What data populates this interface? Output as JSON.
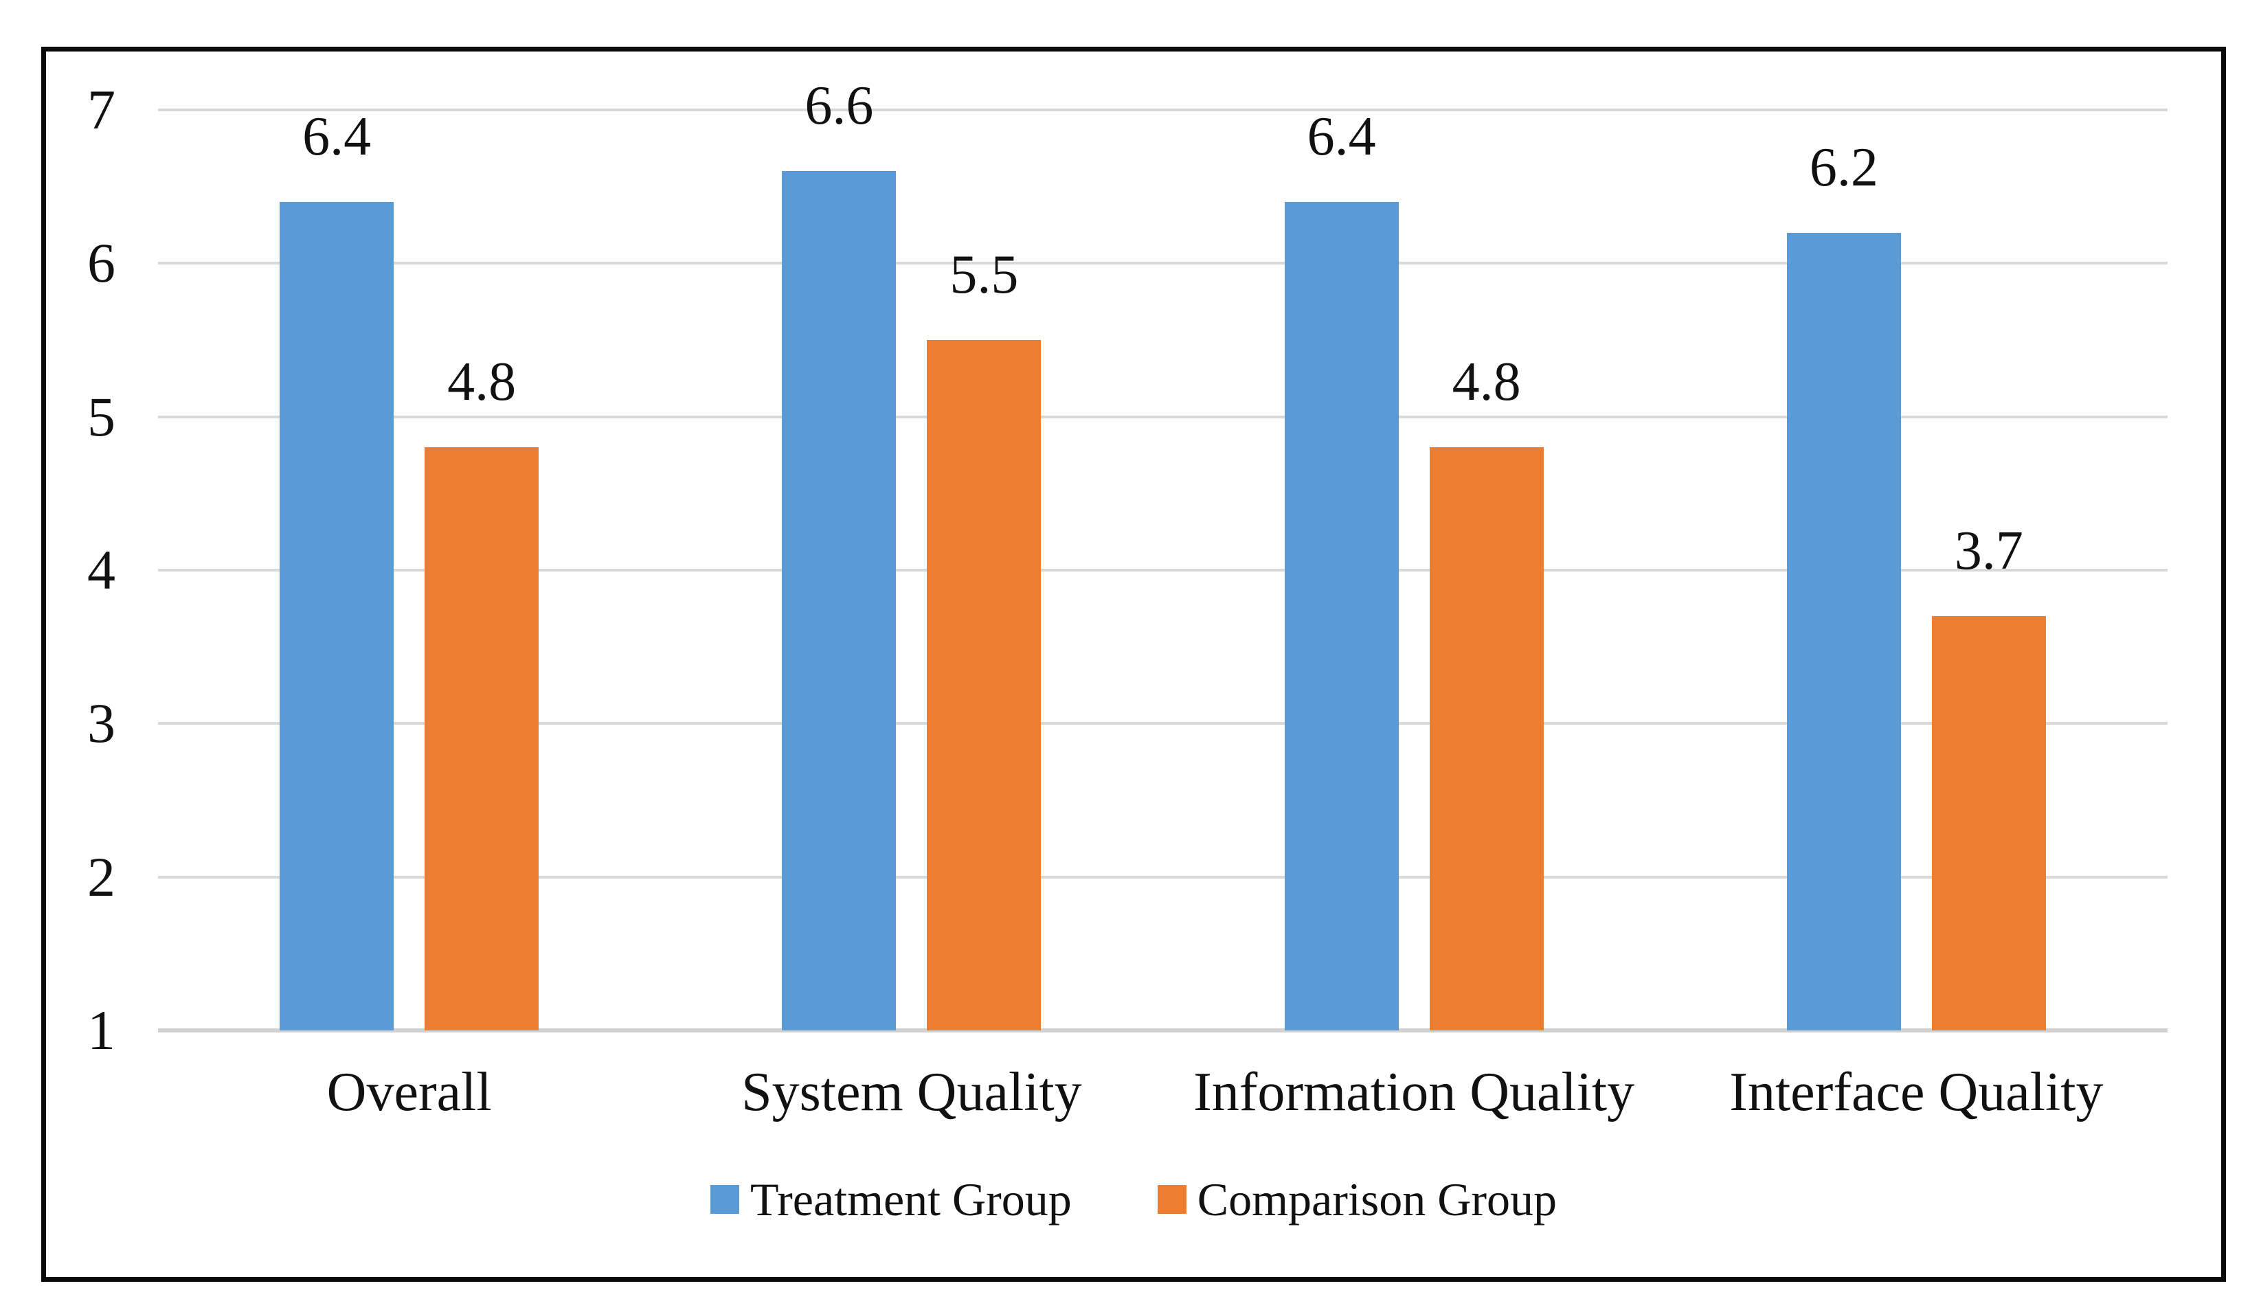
{
  "chart_data": {
    "type": "bar",
    "title": "",
    "xlabel": "",
    "ylabel": "",
    "categories": [
      "Overall",
      "System Quality",
      "Information Quality",
      "Interface Quality"
    ],
    "series": [
      {
        "name": "Treatment Group",
        "color": "#5B9BD5",
        "values": [
          6.4,
          6.6,
          6.4,
          6.2
        ],
        "labels": [
          "6.4",
          "6.6",
          "6.4",
          "6.2"
        ]
      },
      {
        "name": "Comparison Group",
        "color": "#ED7D31",
        "values": [
          4.8,
          5.5,
          4.8,
          3.7
        ],
        "labels": [
          "4.8",
          "5.5",
          "4.8",
          "3.7"
        ]
      }
    ],
    "ylim": [
      1,
      7
    ],
    "yticks": [
      7,
      6,
      5,
      4,
      3,
      2,
      1
    ],
    "grid": true,
    "gridline_color": "#D9D9D9",
    "axis_line_color": "#D2D2D2",
    "data_labels": true,
    "legend_position": "bottom",
    "text_color": "#111111",
    "frame_border_color": "#0B0B0B",
    "background": "#FFFFFF"
  }
}
